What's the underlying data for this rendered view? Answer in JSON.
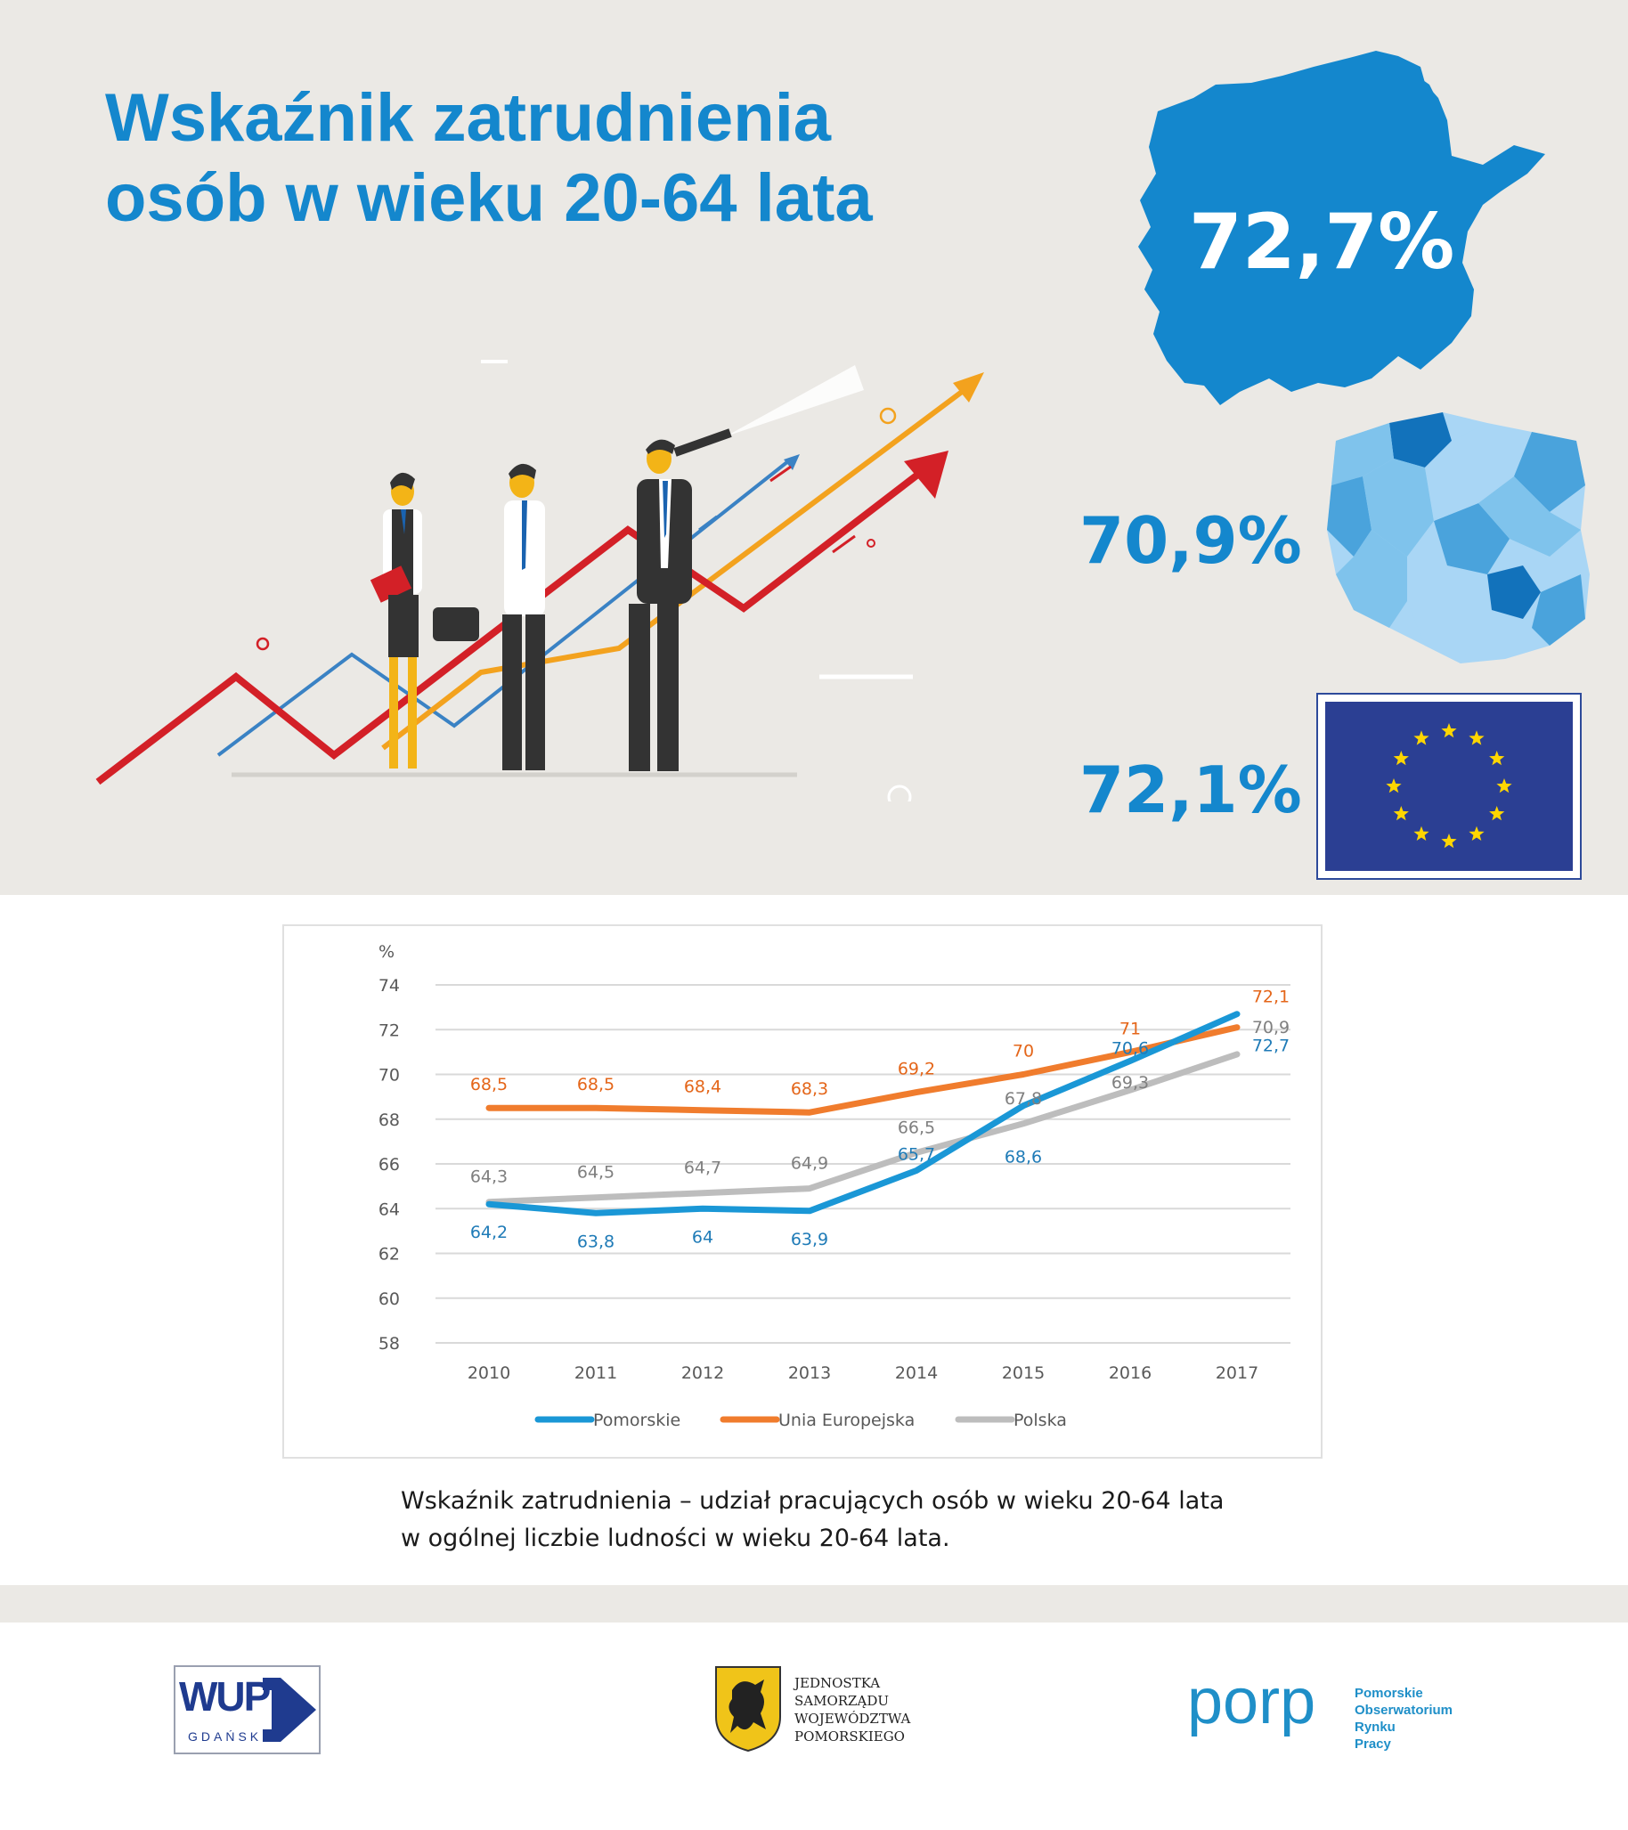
{
  "header": {
    "title_line1": "Wskaźnik zatrudnienia",
    "title_line2": "osób w wieku 20-64 lata"
  },
  "highlights": {
    "pomorskie": "72,7%",
    "polska": "70,9%",
    "eu": "72,1%"
  },
  "colors": {
    "pomorskie": "#1a97d6",
    "eu": "#f07c2d",
    "polska": "#bdbdbd",
    "title": "#1487cd"
  },
  "chart_data": {
    "type": "line",
    "ylabel": "%",
    "ylim": [
      58,
      74
    ],
    "yticks": [
      58,
      60,
      62,
      64,
      66,
      68,
      70,
      72,
      74
    ],
    "categories": [
      "2010",
      "2011",
      "2012",
      "2013",
      "2014",
      "2015",
      "2016",
      "2017"
    ],
    "grid": true,
    "legend_position": "bottom",
    "series": [
      {
        "name": "Pomorskie",
        "values": [
          64.2,
          63.8,
          64,
          63.9,
          65.7,
          68.6,
          70.6,
          72.7
        ],
        "labels": [
          "64,2",
          "63,8",
          "64",
          "63,9",
          "65,7",
          "68,6",
          "70,6",
          "72,7"
        ]
      },
      {
        "name": "Unia Europejska",
        "values": [
          68.5,
          68.5,
          68.4,
          68.3,
          69.2,
          70,
          71,
          72.1
        ],
        "labels": [
          "68,5",
          "68,5",
          "68,4",
          "68,3",
          "69,2",
          "70",
          "71",
          "72,1"
        ]
      },
      {
        "name": "Polska",
        "values": [
          64.3,
          64.5,
          64.7,
          64.9,
          66.5,
          67.8,
          69.3,
          70.9
        ],
        "labels": [
          "64,3",
          "64,5",
          "64,7",
          "64,9",
          "66,5",
          "67,8",
          "69,3",
          "70,9"
        ]
      }
    ]
  },
  "caption": {
    "line1": "Wskaźnik zatrudnienia – udział pracujących osób w wieku 20-64 lata",
    "line2": "w ogólnej liczbie ludności w wieku 20-64 lata."
  },
  "logos": {
    "wup": {
      "main": "WUP",
      "sub": "GDAŃSK"
    },
    "jsw": {
      "line1": "JEDNOSTKA",
      "line2": "SAMORZĄDU",
      "line3": "WOJEWÓDZTWA",
      "line4": "POMORSKIEGO"
    },
    "porp": {
      "main": "porp",
      "line1": "Pomorskie",
      "line2": "Obserwatorium",
      "line3": "Rynku",
      "line4": "Pracy"
    }
  }
}
